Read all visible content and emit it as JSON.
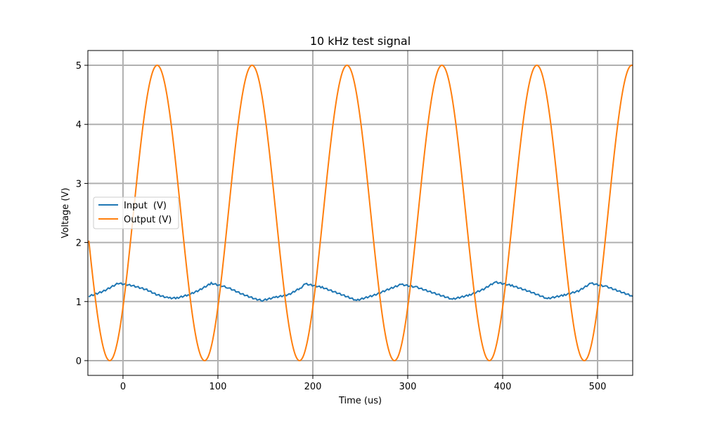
{
  "chart_data": {
    "type": "line",
    "title": "10 kHz test signal",
    "xlabel": "Time (us)",
    "ylabel": "Voltage (V)",
    "xlim": [
      -37,
      537
    ],
    "ylim": [
      -0.25,
      5.25
    ],
    "xticks": [
      0,
      100,
      200,
      300,
      400,
      500
    ],
    "yticks": [
      0,
      1,
      2,
      3,
      4,
      5
    ],
    "grid": true,
    "legend_position": "center-left",
    "series": [
      {
        "name": "Input  (V)",
        "color": "#1f77b4",
        "x": [
          -36,
          -30,
          -20,
          -5,
          10,
          25,
          35,
          48,
          57,
          70,
          80,
          93,
          110,
          125,
          140,
          147,
          160,
          175,
          188,
          192,
          210,
          230,
          246,
          265,
          280,
          293,
          310,
          330,
          347,
          365,
          380,
          392,
          410,
          430,
          447,
          465,
          480,
          493,
          510,
          537
        ],
        "y": [
          1.09,
          1.12,
          1.18,
          1.31,
          1.27,
          1.2,
          1.12,
          1.06,
          1.06,
          1.12,
          1.19,
          1.31,
          1.24,
          1.13,
          1.04,
          1.02,
          1.07,
          1.12,
          1.24,
          1.3,
          1.24,
          1.12,
          1.02,
          1.11,
          1.21,
          1.29,
          1.24,
          1.13,
          1.04,
          1.11,
          1.21,
          1.33,
          1.27,
          1.16,
          1.05,
          1.11,
          1.18,
          1.31,
          1.25,
          1.09
        ]
      },
      {
        "name": "Output (V)",
        "color": "#ff7f0e",
        "function": "2.5 - 2.5*cos(2*pi*(t+14)/100)",
        "x_range": [
          -36,
          537
        ]
      }
    ]
  }
}
